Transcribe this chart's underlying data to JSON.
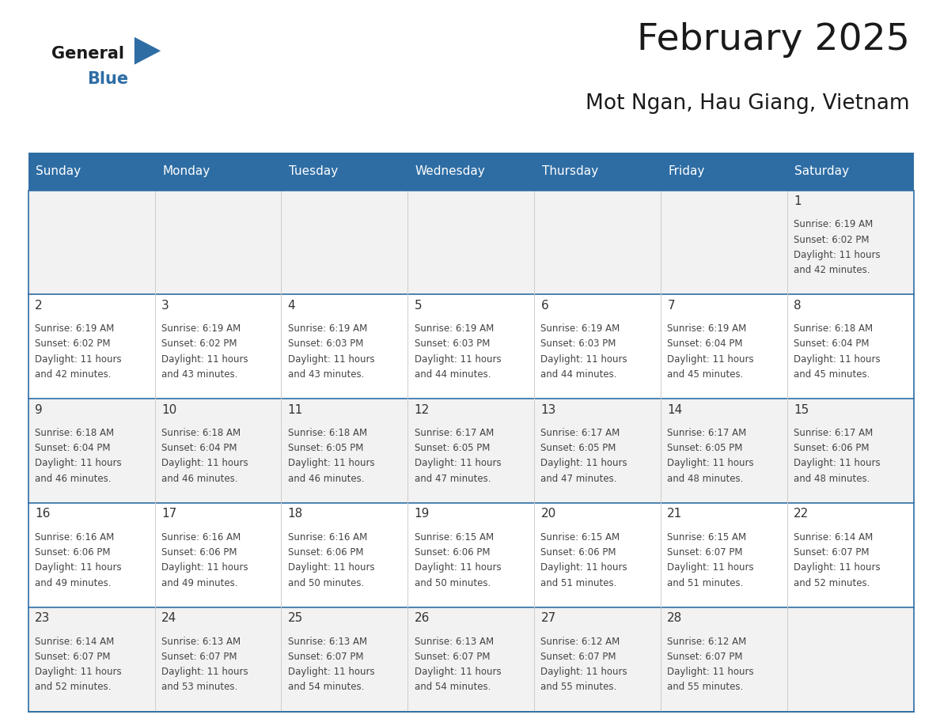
{
  "title": "February 2025",
  "subtitle": "Mot Ngan, Hau Giang, Vietnam",
  "header_bg": "#2E6DA4",
  "header_text": "#FFFFFF",
  "cell_bg_odd": "#F2F2F2",
  "cell_bg_even": "#FFFFFF",
  "border_color": "#2E6DA4",
  "vert_line_color": "#CCCCCC",
  "text_color": "#444444",
  "day_num_color": "#333333",
  "title_color": "#1a1a1a",
  "logo_general_color": "#1a1a1a",
  "logo_blue_color": "#2E6DA4",
  "logo_triangle_color": "#2E6DA4",
  "day_names": [
    "Sunday",
    "Monday",
    "Tuesday",
    "Wednesday",
    "Thursday",
    "Friday",
    "Saturday"
  ],
  "days": [
    {
      "day": 1,
      "col": 6,
      "row": 0,
      "sunrise": "6:19 AM",
      "sunset": "6:02 PM",
      "daylight_hours": 11,
      "daylight_minutes": 42
    },
    {
      "day": 2,
      "col": 0,
      "row": 1,
      "sunrise": "6:19 AM",
      "sunset": "6:02 PM",
      "daylight_hours": 11,
      "daylight_minutes": 42
    },
    {
      "day": 3,
      "col": 1,
      "row": 1,
      "sunrise": "6:19 AM",
      "sunset": "6:02 PM",
      "daylight_hours": 11,
      "daylight_minutes": 43
    },
    {
      "day": 4,
      "col": 2,
      "row": 1,
      "sunrise": "6:19 AM",
      "sunset": "6:03 PM",
      "daylight_hours": 11,
      "daylight_minutes": 43
    },
    {
      "day": 5,
      "col": 3,
      "row": 1,
      "sunrise": "6:19 AM",
      "sunset": "6:03 PM",
      "daylight_hours": 11,
      "daylight_minutes": 44
    },
    {
      "day": 6,
      "col": 4,
      "row": 1,
      "sunrise": "6:19 AM",
      "sunset": "6:03 PM",
      "daylight_hours": 11,
      "daylight_minutes": 44
    },
    {
      "day": 7,
      "col": 5,
      "row": 1,
      "sunrise": "6:19 AM",
      "sunset": "6:04 PM",
      "daylight_hours": 11,
      "daylight_minutes": 45
    },
    {
      "day": 8,
      "col": 6,
      "row": 1,
      "sunrise": "6:18 AM",
      "sunset": "6:04 PM",
      "daylight_hours": 11,
      "daylight_minutes": 45
    },
    {
      "day": 9,
      "col": 0,
      "row": 2,
      "sunrise": "6:18 AM",
      "sunset": "6:04 PM",
      "daylight_hours": 11,
      "daylight_minutes": 46
    },
    {
      "day": 10,
      "col": 1,
      "row": 2,
      "sunrise": "6:18 AM",
      "sunset": "6:04 PM",
      "daylight_hours": 11,
      "daylight_minutes": 46
    },
    {
      "day": 11,
      "col": 2,
      "row": 2,
      "sunrise": "6:18 AM",
      "sunset": "6:05 PM",
      "daylight_hours": 11,
      "daylight_minutes": 46
    },
    {
      "day": 12,
      "col": 3,
      "row": 2,
      "sunrise": "6:17 AM",
      "sunset": "6:05 PM",
      "daylight_hours": 11,
      "daylight_minutes": 47
    },
    {
      "day": 13,
      "col": 4,
      "row": 2,
      "sunrise": "6:17 AM",
      "sunset": "6:05 PM",
      "daylight_hours": 11,
      "daylight_minutes": 47
    },
    {
      "day": 14,
      "col": 5,
      "row": 2,
      "sunrise": "6:17 AM",
      "sunset": "6:05 PM",
      "daylight_hours": 11,
      "daylight_minutes": 48
    },
    {
      "day": 15,
      "col": 6,
      "row": 2,
      "sunrise": "6:17 AM",
      "sunset": "6:06 PM",
      "daylight_hours": 11,
      "daylight_minutes": 48
    },
    {
      "day": 16,
      "col": 0,
      "row": 3,
      "sunrise": "6:16 AM",
      "sunset": "6:06 PM",
      "daylight_hours": 11,
      "daylight_minutes": 49
    },
    {
      "day": 17,
      "col": 1,
      "row": 3,
      "sunrise": "6:16 AM",
      "sunset": "6:06 PM",
      "daylight_hours": 11,
      "daylight_minutes": 49
    },
    {
      "day": 18,
      "col": 2,
      "row": 3,
      "sunrise": "6:16 AM",
      "sunset": "6:06 PM",
      "daylight_hours": 11,
      "daylight_minutes": 50
    },
    {
      "day": 19,
      "col": 3,
      "row": 3,
      "sunrise": "6:15 AM",
      "sunset": "6:06 PM",
      "daylight_hours": 11,
      "daylight_minutes": 50
    },
    {
      "day": 20,
      "col": 4,
      "row": 3,
      "sunrise": "6:15 AM",
      "sunset": "6:06 PM",
      "daylight_hours": 11,
      "daylight_minutes": 51
    },
    {
      "day": 21,
      "col": 5,
      "row": 3,
      "sunrise": "6:15 AM",
      "sunset": "6:07 PM",
      "daylight_hours": 11,
      "daylight_minutes": 51
    },
    {
      "day": 22,
      "col": 6,
      "row": 3,
      "sunrise": "6:14 AM",
      "sunset": "6:07 PM",
      "daylight_hours": 11,
      "daylight_minutes": 52
    },
    {
      "day": 23,
      "col": 0,
      "row": 4,
      "sunrise": "6:14 AM",
      "sunset": "6:07 PM",
      "daylight_hours": 11,
      "daylight_minutes": 52
    },
    {
      "day": 24,
      "col": 1,
      "row": 4,
      "sunrise": "6:13 AM",
      "sunset": "6:07 PM",
      "daylight_hours": 11,
      "daylight_minutes": 53
    },
    {
      "day": 25,
      "col": 2,
      "row": 4,
      "sunrise": "6:13 AM",
      "sunset": "6:07 PM",
      "daylight_hours": 11,
      "daylight_minutes": 54
    },
    {
      "day": 26,
      "col": 3,
      "row": 4,
      "sunrise": "6:13 AM",
      "sunset": "6:07 PM",
      "daylight_hours": 11,
      "daylight_minutes": 54
    },
    {
      "day": 27,
      "col": 4,
      "row": 4,
      "sunrise": "6:12 AM",
      "sunset": "6:07 PM",
      "daylight_hours": 11,
      "daylight_minutes": 55
    },
    {
      "day": 28,
      "col": 5,
      "row": 4,
      "sunrise": "6:12 AM",
      "sunset": "6:07 PM",
      "daylight_hours": 11,
      "daylight_minutes": 55
    }
  ],
  "num_rows": 5,
  "num_cols": 7
}
